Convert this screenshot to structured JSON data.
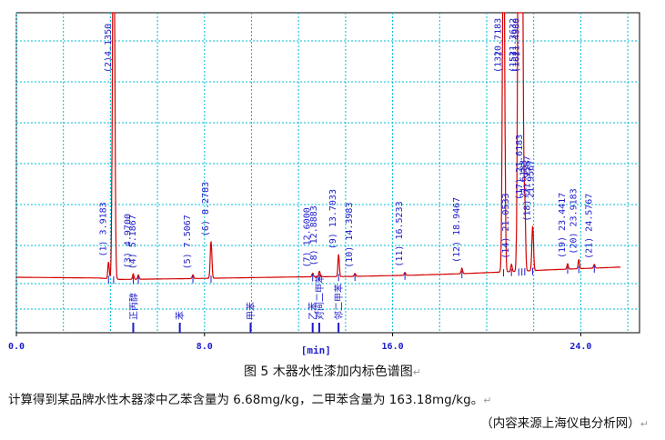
{
  "chart_data": {
    "type": "line",
    "title": "",
    "xlabel": "[min]",
    "ylabel": "",
    "xlim": [
      0,
      26.5
    ],
    "x_ticks": [
      {
        "value": 0,
        "label": "0.0"
      },
      {
        "value": 8,
        "label": "8.0"
      },
      {
        "value": 16,
        "label": "16.0"
      },
      {
        "value": 24,
        "label": "24.0"
      }
    ],
    "grid": true,
    "colors": {
      "signal": "#d40000",
      "grid": "#00bcd4",
      "annotation": "#1c1ccc",
      "frame": "#000000"
    },
    "baseline": [
      [
        0,
        0
      ],
      [
        3.5,
        -0.2
      ],
      [
        4.4,
        -0.6
      ],
      [
        7.0,
        -0.4
      ],
      [
        12.0,
        0.1
      ],
      [
        14.0,
        0.2
      ],
      [
        17.0,
        0.6
      ],
      [
        19.0,
        1.0
      ],
      [
        20.5,
        1.4
      ],
      [
        22.5,
        2.0
      ],
      [
        25.7,
        2.8
      ]
    ],
    "peaks": [
      {
        "no": "(1)",
        "rt": "3.9183",
        "x": 3.9183,
        "h": 4.5,
        "label": ""
      },
      {
        "no": "(2)",
        "rt": "4.1350",
        "x": 4.135,
        "h": 120,
        "label": ""
      },
      {
        "no": "(3)",
        "rt": "4.9700",
        "x": 4.97,
        "h": 1.5,
        "label": "正丙醇"
      },
      {
        "no": "(4)",
        "rt": "5.1867",
        "x": 5.1867,
        "h": 1.2,
        "label": ""
      },
      {
        "no": "(5)",
        "rt": "7.5067",
        "x": 7.5067,
        "h": 1.0,
        "label": ""
      },
      {
        "no": "(6)",
        "rt": "8.2783",
        "x": 8.2783,
        "h": 10,
        "label": ""
      },
      {
        "no": "(7)",
        "rt": "12.6000",
        "x": 12.6,
        "h": 1.0,
        "label": "乙苯"
      },
      {
        "no": "(8)",
        "rt": "12.8883",
        "x": 12.8883,
        "h": 1.5,
        "label": "对间二甲苯"
      },
      {
        "no": "(9)",
        "rt": "13.7033",
        "x": 13.7033,
        "h": 6,
        "label": "邻二甲苯"
      },
      {
        "no": "(10)",
        "rt": "14.3983",
        "x": 14.3983,
        "h": 0.8,
        "label": ""
      },
      {
        "no": "(11)",
        "rt": "16.5233",
        "x": 16.5233,
        "h": 0.8,
        "label": ""
      },
      {
        "no": "(12)",
        "rt": "18.9467",
        "x": 18.9467,
        "h": 1.5,
        "label": ""
      },
      {
        "no": "(13)",
        "rt": "20.7183",
        "x": 20.7183,
        "h": 110,
        "label": ""
      },
      {
        "no": "(14)",
        "rt": "21.0533",
        "x": 21.0533,
        "h": 2.0,
        "label": ""
      },
      {
        "no": "(15)",
        "rt": "21.3632",
        "x": 21.3632,
        "h": 120,
        "label": ""
      },
      {
        "no": "(16)",
        "rt": "21.4980",
        "x": 21.498,
        "h": 120,
        "label": ""
      },
      {
        "no": "(17)",
        "rt": "21.6183",
        "x": 21.6183,
        "h": 18,
        "label": ""
      },
      {
        "no": "(18)",
        "rt": "21.9567",
        "x": 21.9567,
        "h": 12,
        "label": ""
      },
      {
        "no": "(19)",
        "rt": "23.4417",
        "x": 23.4417,
        "h": 1.5,
        "label": ""
      },
      {
        "no": "(20)",
        "rt": "23.9183",
        "x": 23.9183,
        "h": 2.5,
        "label": ""
      },
      {
        "no": "(21)",
        "rt": "24.5767",
        "x": 24.5767,
        "h": 1.0,
        "label": ""
      }
    ],
    "top_labels": [
      {
        "x": 4.135,
        "no": "(2)",
        "rt": "4.1350"
      },
      {
        "x": 20.7183,
        "no": "(13)",
        "rt": "20.7183"
      },
      {
        "x": 21.363,
        "no": "(15)",
        "rt": "21.3632"
      },
      {
        "x": 21.498,
        "no": "(16)",
        "rt": "21.4980"
      }
    ],
    "side_labels": [
      {
        "x": 21.69,
        "rt": "21.6183"
      },
      {
        "x": 22.0,
        "rt": "21.9567"
      }
    ],
    "bottom_markers": [
      {
        "x": 4.97,
        "label": "正丙醇"
      },
      {
        "x": 6.95,
        "label": "苯"
      },
      {
        "x": 9.96,
        "label": "甲苯"
      },
      {
        "x": 12.6,
        "label": "乙苯"
      },
      {
        "x": 12.88,
        "label": "对间二甲苯"
      },
      {
        "x": 13.7,
        "label": "邻二甲苯"
      }
    ]
  },
  "captions": {
    "figure": "图 5 木器水性漆加内标色谱图",
    "result": "计算得到某品牌水性木器漆中乙苯含量为 6.68mg/kg，二甲苯含量为 163.18mg/kg。",
    "source": "（内容来源上海仪电分析网）"
  }
}
